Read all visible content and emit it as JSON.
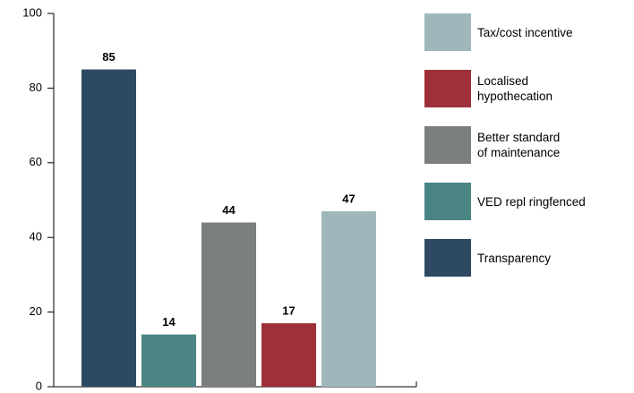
{
  "chart_data": {
    "type": "bar",
    "series": [
      {
        "name": "Transparency",
        "color": "#2e4a62",
        "values": [
          85
        ]
      },
      {
        "name": "VED repl ringfenced",
        "color": "#4a8584",
        "values": [
          14
        ]
      },
      {
        "name": "Better standard\nof maintenance",
        "color": "#7b7f80",
        "values": [
          44
        ]
      },
      {
        "name": "Localised\nhypothecation",
        "color": "#9e3039",
        "values": [
          17
        ]
      },
      {
        "name": "Tax/cost incentive",
        "color": "#9fb7ba",
        "values": [
          47
        ]
      }
    ],
    "ylim": [
      0,
      100
    ],
    "yticks": [
      0,
      20,
      40,
      60,
      80,
      100
    ],
    "grid": false,
    "legend": "right"
  }
}
